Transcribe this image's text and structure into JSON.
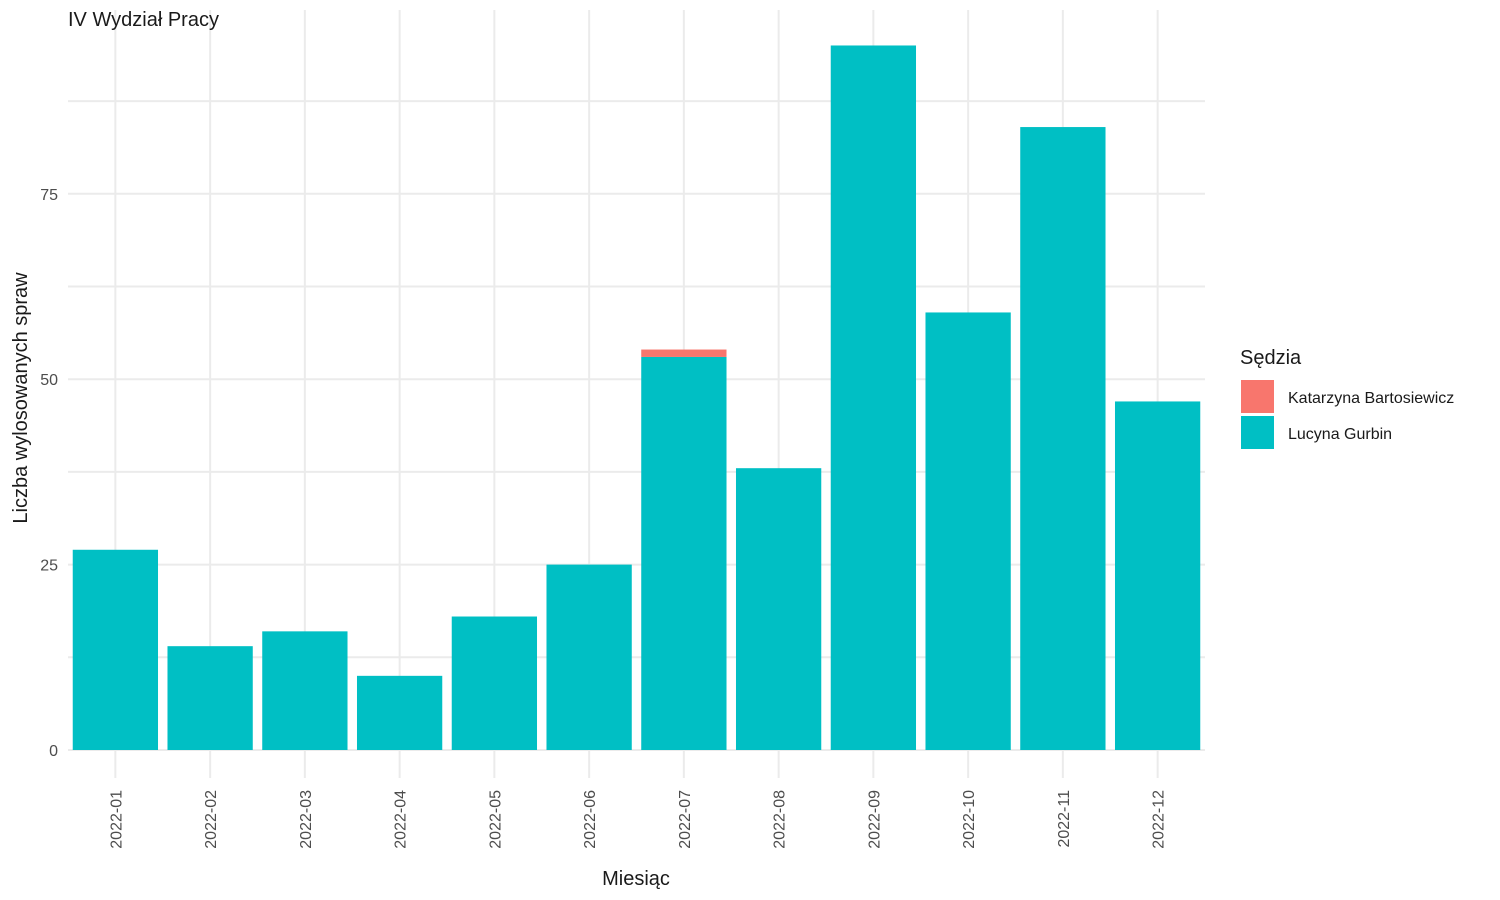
{
  "chart_data": {
    "type": "bar",
    "stacked": true,
    "title": "IV Wydział Pracy",
    "xlabel": "Miesiąc",
    "ylabel": "Liczba wylosowanych spraw",
    "categories": [
      "2022-01",
      "2022-02",
      "2022-03",
      "2022-04",
      "2022-05",
      "2022-06",
      "2022-07",
      "2022-08",
      "2022-09",
      "2022-10",
      "2022-11",
      "2022-12"
    ],
    "yticks": [
      "0",
      "25",
      "50",
      "75"
    ],
    "ylim": [
      0,
      97
    ],
    "grid": true,
    "legend": {
      "title": "Sędzia",
      "position": "right"
    },
    "series": [
      {
        "name": "Lucyna Gurbin",
        "color": "#00BFC4",
        "values": [
          27,
          14,
          16,
          10,
          18,
          25,
          53,
          38,
          95,
          59,
          84,
          47
        ]
      },
      {
        "name": "Katarzyna Bartosiewicz",
        "color": "#F8766D",
        "values": [
          0,
          0,
          0,
          0,
          0,
          0,
          1,
          0,
          0,
          0,
          0,
          0
        ]
      }
    ],
    "legend_order": [
      "Katarzyna Bartosiewicz",
      "Lucyna Gurbin"
    ]
  }
}
